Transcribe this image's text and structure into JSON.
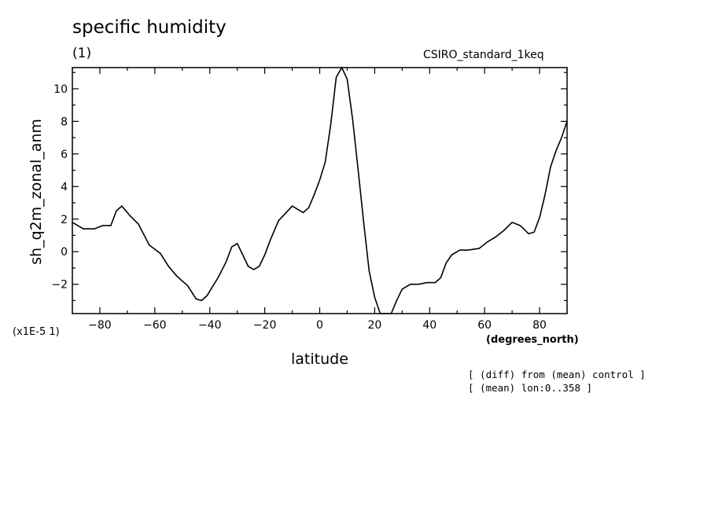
{
  "chart_data": {
    "type": "line",
    "title": "specific humidity",
    "subtitle": "(1)",
    "source": "CSIRO_standard_1keq",
    "xlabel": "latitude",
    "ylabel": "sh_q2m_zonal_anm",
    "x_units": "(degrees_north)",
    "y_scale_note": "(x1E-5 1)",
    "notes": [
      "[ (diff) from (mean) control ]",
      "[ (mean) lon:0..358 ]"
    ],
    "xlim": [
      -90,
      90
    ],
    "ylim": [
      -3.8,
      11.3
    ],
    "x_ticks": [
      -80,
      -60,
      -40,
      -20,
      0,
      20,
      40,
      60,
      80
    ],
    "y_ticks": [
      -2,
      0,
      2,
      4,
      6,
      8,
      10
    ],
    "grid": false,
    "series": [
      {
        "x": [
          -90,
          -86,
          -82,
          -79,
          -76,
          -74,
          -72,
          -69,
          -66,
          -62,
          -58,
          -55,
          -52,
          -48,
          -45,
          -43,
          -41,
          -37,
          -34,
          -32,
          -30,
          -28,
          -26,
          -24,
          -22,
          -20,
          -18,
          -15,
          -10,
          -6,
          -4,
          -2,
          0,
          2,
          4,
          6,
          8,
          10,
          12,
          14,
          16,
          18,
          20,
          22,
          24,
          26,
          28,
          30,
          33,
          36,
          39,
          42,
          44,
          46,
          48,
          51,
          54,
          58,
          61,
          64,
          67,
          70,
          73,
          76,
          78,
          80,
          82,
          84,
          86,
          88,
          90
        ],
        "values": [
          1.8,
          1.4,
          1.4,
          1.6,
          1.6,
          2.5,
          2.8,
          2.2,
          1.7,
          0.4,
          -0.1,
          -0.9,
          -1.5,
          -2.1,
          -2.9,
          -3.0,
          -2.7,
          -1.6,
          -0.6,
          0.3,
          0.5,
          -0.2,
          -0.9,
          -1.1,
          -0.9,
          -0.2,
          0.7,
          1.9,
          2.8,
          2.4,
          2.7,
          3.5,
          4.4,
          5.5,
          7.8,
          10.7,
          11.3,
          10.6,
          8.1,
          5.0,
          1.8,
          -1.2,
          -2.8,
          -3.8,
          -3.9,
          -3.8,
          -3.0,
          -2.3,
          -2.0,
          -2.0,
          -1.9,
          -1.9,
          -1.6,
          -0.7,
          -0.2,
          0.1,
          0.1,
          0.2,
          0.6,
          0.9,
          1.3,
          1.8,
          1.6,
          1.1,
          1.2,
          2.1,
          3.5,
          5.2,
          6.2,
          7.0,
          8.0
        ]
      }
    ]
  }
}
